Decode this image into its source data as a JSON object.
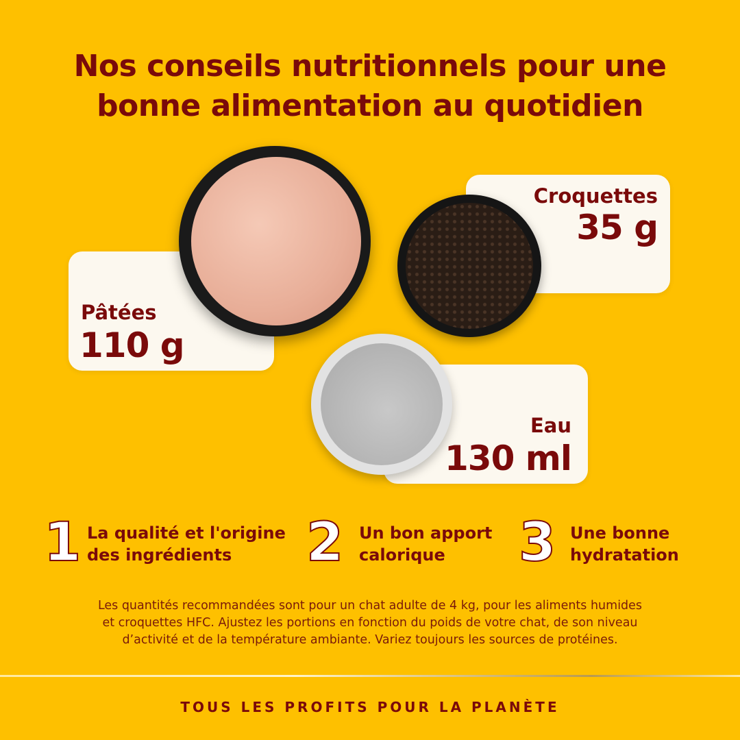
{
  "title": {
    "line1": "Nos conseils nutritionnels pour une",
    "line2": "bonne alimentation au quotidien"
  },
  "cards": [
    {
      "label": "Pâtées",
      "value": "110 g"
    },
    {
      "label": "Croquettes",
      "value": "35 g"
    },
    {
      "label": "Eau",
      "value": "130 ml"
    }
  ],
  "points": [
    {
      "number": "1",
      "line1": "La qualité et l'origine",
      "line2": "des ingrédients"
    },
    {
      "number": "2",
      "line1": "Un bon apport",
      "line2": "calorique"
    },
    {
      "number": "3",
      "line1": "Une bonne",
      "line2": "hydratation"
    }
  ],
  "disclaimer": {
    "line1": "Les quantités recommandées sont pour un chat adulte de 4 kg, pour les aliments humides",
    "line2": "et croquettes HFC. Ajustez les portions en fonction du poids de votre chat, de son niveau",
    "line3": "d’activité et de la température ambiante. Variez toujours les sources de protéines."
  },
  "footer": "TOUS LES PROFITS POUR LA PLANÈTE",
  "colors": {
    "background": "#FEC000",
    "text": "#7A0A0A",
    "card": "#FCF8EF"
  }
}
